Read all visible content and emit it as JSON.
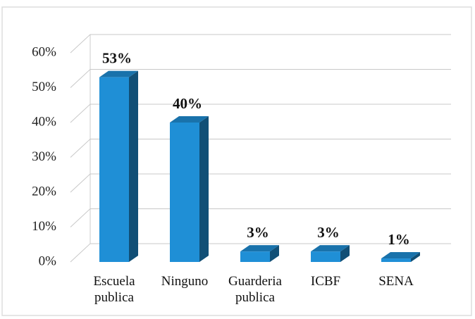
{
  "chart_data": {
    "type": "bar",
    "categories": [
      "Escuela publica",
      "Ninguno",
      "Guarderia publica",
      "ICBF",
      "SENA"
    ],
    "values": [
      53,
      40,
      3,
      3,
      1
    ],
    "value_labels": [
      "53%",
      "40%",
      "3%",
      "3%",
      "1%"
    ],
    "color": "#1f8fd6",
    "ylim": [
      0,
      60
    ],
    "yticks": [
      {
        "value": 0,
        "label": "0%"
      },
      {
        "value": 10,
        "label": "10%"
      },
      {
        "value": 20,
        "label": "20%"
      },
      {
        "value": 30,
        "label": "30%"
      },
      {
        "value": 40,
        "label": "40%"
      },
      {
        "value": 50,
        "label": "50%"
      },
      {
        "value": 60,
        "label": "60%"
      }
    ],
    "grid": true
  }
}
